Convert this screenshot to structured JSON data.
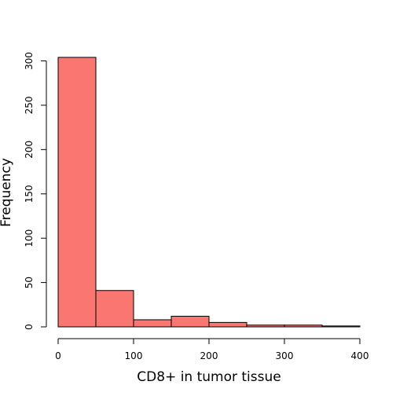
{
  "chart_data": {
    "type": "bar",
    "subtype": "histogram",
    "title": "",
    "xlabel": "CD8+ in tumor tissue",
    "ylabel": "Frequency",
    "bin_edges": [
      0,
      50,
      100,
      150,
      200,
      250,
      300,
      350,
      400
    ],
    "values": [
      304,
      41,
      8,
      12,
      5,
      2,
      2,
      1
    ],
    "xlim": [
      0,
      400
    ],
    "ylim": [
      0,
      304
    ],
    "xticks": [
      0,
      100,
      200,
      300,
      400
    ],
    "yticks": [
      0,
      50,
      100,
      150,
      200,
      250,
      300
    ],
    "bar_color": "#fa7670",
    "grid": false,
    "legend": "none"
  }
}
